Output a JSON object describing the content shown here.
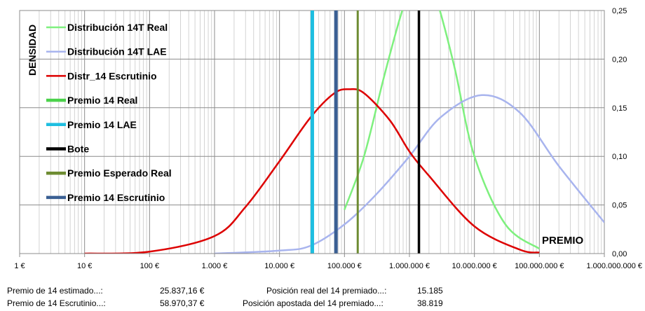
{
  "chart_data": {
    "type": "line",
    "x_scale": "log",
    "xlim": [
      1,
      1000000000
    ],
    "ylim": [
      0,
      0.25
    ],
    "x_ticks": [
      1,
      10,
      100,
      1000,
      10000,
      100000,
      1000000,
      10000000,
      100000000,
      1000000000
    ],
    "x_tick_labels": [
      "1 €",
      "10 €",
      "100 €",
      "1.000 €",
      "10.000 €",
      "100.000 €",
      "1.000.000 €",
      "10.000.000 €",
      "100.000.000 €",
      "1.000.000.000 €"
    ],
    "y_ticks": [
      0,
      0.05,
      0.1,
      0.15,
      0.2,
      0.25
    ],
    "y_tick_labels": [
      "0,00",
      "0,05",
      "0,10",
      "0,15",
      "0,20",
      "0,25"
    ],
    "ylabel": "DENSIDAD",
    "xlabel": "PREMIO",
    "grid": true,
    "legend_position": "top-left",
    "series": [
      {
        "name": "Distribución 14T Real",
        "kind": "curve",
        "color": "#7ef07e",
        "width": 2.5,
        "x": [
          100000,
          200000,
          400000,
          700000,
          1000000,
          1500000,
          2000000,
          2800000,
          5000000,
          10000000,
          30000000,
          100000000
        ],
        "y": [
          0.045,
          0.1,
          0.18,
          0.24,
          0.27,
          0.282,
          0.28,
          0.255,
          0.19,
          0.1,
          0.03,
          0.005
        ]
      },
      {
        "name": "Distribución 14T LAE",
        "kind": "curve",
        "color": "#a8b4ee",
        "width": 2.5,
        "x": [
          1000,
          10000,
          30000,
          100000,
          300000,
          1000000,
          3000000,
          13000000,
          50000000,
          200000000,
          1000000000
        ],
        "y": [
          0.0,
          0.003,
          0.008,
          0.03,
          0.06,
          0.1,
          0.14,
          0.163,
          0.145,
          0.09,
          0.032
        ]
      },
      {
        "name": "Distr_14 Escrutinio",
        "kind": "curve",
        "color": "#dd0000",
        "width": 2.5,
        "x": [
          10,
          100,
          1000,
          3000,
          10000,
          30000,
          70000,
          120000,
          200000,
          500000,
          1000000,
          2000000,
          10000000,
          50000000,
          100000000
        ],
        "y": [
          0.0,
          0.002,
          0.018,
          0.048,
          0.095,
          0.14,
          0.165,
          0.169,
          0.165,
          0.137,
          0.105,
          0.08,
          0.028,
          0.004,
          0.001
        ]
      },
      {
        "name": "Premio 14  Real",
        "kind": "vline",
        "color": "#4cd24c",
        "width": 5,
        "x": null
      },
      {
        "name": "Premio 14 LAE",
        "kind": "vline",
        "color": "#1ebee0",
        "width": 5,
        "x": 32000
      },
      {
        "name": "Bote",
        "kind": "vline",
        "color": "#000000",
        "width": 3.5,
        "x": 1400000
      },
      {
        "name": "Premio Esperado Real",
        "kind": "vline",
        "color": "#6e8c32",
        "width": 3,
        "x": 160000
      },
      {
        "name": "Premio 14 Escrutinio",
        "kind": "vline",
        "color": "#3a5f93",
        "width": 5,
        "x": 74000
      }
    ]
  },
  "summary": {
    "estimated_label": "Premio de 14 estimado...:",
    "estimated_value": "25.837,16 €",
    "escrutinio_label": "Premio de 14 Escrutinio...:",
    "escrutinio_value": "58.970,37 €",
    "real_pos_label": "Posición real del 14 premiado...:",
    "real_pos_value": "15.185",
    "bet_pos_label": "Posición apostada del 14 premiado...:",
    "bet_pos_value": "38.819"
  }
}
